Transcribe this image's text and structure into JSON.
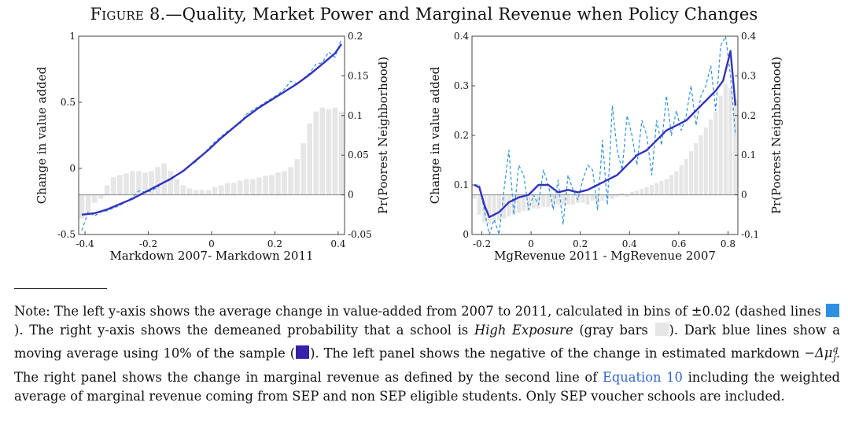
{
  "figure": {
    "label": "Figure 8.",
    "title": "—Quality, Market Power and Marginal Revenue when Policy Changes"
  },
  "colors": {
    "dashed": "#2e8fe0",
    "moving_avg": "#3333bb",
    "bars": "#e6e6e6"
  },
  "chart_data": [
    {
      "type": "line",
      "xlabel": "Markdown 2007- Markdown 2011",
      "ylabel": "Change in value added",
      "y2label": "Pr(Poorest Neighborhood)",
      "xlim": [
        -0.42,
        0.42
      ],
      "ylim": [
        -0.5,
        1
      ],
      "y2lim": [
        -0.05,
        0.2
      ],
      "xticks": [
        "-0.4",
        "-0.2",
        "0",
        "0.2",
        "0.4"
      ],
      "yticks": [
        "-0.5",
        "0",
        "0.5",
        "1"
      ],
      "y2ticks": [
        "-0.05",
        "0",
        "0.05",
        "0.1",
        "0.15",
        "0.2"
      ],
      "bars": {
        "name": "High Exposure (gray bars)",
        "x": [
          -0.41,
          -0.39,
          -0.37,
          -0.35,
          -0.33,
          -0.31,
          -0.29,
          -0.27,
          -0.25,
          -0.23,
          -0.21,
          -0.19,
          -0.17,
          -0.15,
          -0.13,
          -0.11,
          -0.09,
          -0.07,
          -0.05,
          -0.03,
          -0.01,
          0.01,
          0.03,
          0.05,
          0.07,
          0.09,
          0.11,
          0.13,
          0.15,
          0.17,
          0.19,
          0.21,
          0.23,
          0.25,
          0.27,
          0.29,
          0.31,
          0.33,
          0.35,
          0.37,
          0.39,
          0.41
        ],
        "values": [
          -0.03,
          -0.025,
          -0.01,
          -0.005,
          0.012,
          0.022,
          0.025,
          0.027,
          0.03,
          0.03,
          0.028,
          0.03,
          0.035,
          0.04,
          0.03,
          0.02,
          0.012,
          0.008,
          0.006,
          0.006,
          0.006,
          0.01,
          0.012,
          0.015,
          0.015,
          0.018,
          0.02,
          0.02,
          0.022,
          0.024,
          0.025,
          0.028,
          0.03,
          0.035,
          0.045,
          0.065,
          0.09,
          0.105,
          0.11,
          0.108,
          0.11,
          0.105
        ]
      },
      "series": [
        {
          "name": "dashed lines",
          "style": "dashed",
          "x": [
            -0.41,
            -0.39,
            -0.37,
            -0.35,
            -0.33,
            -0.31,
            -0.29,
            -0.27,
            -0.25,
            -0.23,
            -0.21,
            -0.19,
            -0.17,
            -0.15,
            -0.13,
            -0.11,
            -0.09,
            -0.07,
            -0.05,
            -0.03,
            -0.01,
            0.01,
            0.03,
            0.05,
            0.07,
            0.09,
            0.11,
            0.13,
            0.15,
            0.17,
            0.19,
            0.21,
            0.23,
            0.25,
            0.27,
            0.29,
            0.31,
            0.33,
            0.35,
            0.37,
            0.39,
            0.41
          ],
          "values": [
            -0.47,
            -0.33,
            -0.36,
            -0.33,
            -0.32,
            -0.3,
            -0.28,
            -0.25,
            -0.22,
            -0.17,
            -0.18,
            -0.17,
            -0.14,
            -0.1,
            -0.09,
            -0.05,
            -0.02,
            0.02,
            0.05,
            0.1,
            0.15,
            0.2,
            0.24,
            0.28,
            0.31,
            0.34,
            0.41,
            0.44,
            0.47,
            0.5,
            0.53,
            0.56,
            0.6,
            0.66,
            0.64,
            0.68,
            0.72,
            0.79,
            0.8,
            0.88,
            0.84,
            0.98
          ]
        },
        {
          "name": "moving average",
          "style": "solid",
          "x": [
            -0.41,
            -0.37,
            -0.33,
            -0.29,
            -0.25,
            -0.21,
            -0.17,
            -0.13,
            -0.09,
            -0.05,
            -0.01,
            0.03,
            0.07,
            0.11,
            0.15,
            0.19,
            0.23,
            0.27,
            0.31,
            0.35,
            0.39,
            0.41
          ],
          "values": [
            -0.35,
            -0.34,
            -0.31,
            -0.27,
            -0.23,
            -0.18,
            -0.13,
            -0.08,
            -0.02,
            0.06,
            0.14,
            0.23,
            0.31,
            0.39,
            0.46,
            0.52,
            0.58,
            0.64,
            0.71,
            0.79,
            0.87,
            0.94
          ]
        }
      ]
    },
    {
      "type": "line",
      "xlabel": "MgRevenue 2011 - MgRevenue 2007",
      "ylabel": "Change in value added",
      "y2label": "Pr(Poorest Neighborhood)",
      "xlim": [
        -0.24,
        0.84
      ],
      "ylim": [
        0,
        0.4
      ],
      "y2lim": [
        -0.1,
        0.4
      ],
      "xticks": [
        "-0.2",
        "0",
        "0.2",
        "0.4",
        "0.6",
        "0.8"
      ],
      "yticks": [
        "0",
        "0.1",
        "0.2",
        "0.3",
        "0.4"
      ],
      "y2ticks": [
        "-0.1",
        "0",
        "0.1",
        "0.2",
        "0.3",
        "0.4"
      ],
      "bars": {
        "name": "High Exposure (gray bars)",
        "x": [
          -0.23,
          -0.21,
          -0.19,
          -0.17,
          -0.15,
          -0.13,
          -0.11,
          -0.09,
          -0.07,
          -0.05,
          -0.03,
          -0.01,
          0.01,
          0.03,
          0.05,
          0.07,
          0.09,
          0.11,
          0.13,
          0.15,
          0.17,
          0.19,
          0.21,
          0.23,
          0.25,
          0.27,
          0.29,
          0.31,
          0.33,
          0.35,
          0.37,
          0.39,
          0.41,
          0.43,
          0.45,
          0.47,
          0.49,
          0.51,
          0.53,
          0.55,
          0.57,
          0.59,
          0.61,
          0.63,
          0.65,
          0.67,
          0.69,
          0.71,
          0.73,
          0.75,
          0.77,
          0.79,
          0.81,
          0.83
        ],
        "values": [
          -0.01,
          -0.05,
          -0.07,
          -0.075,
          -0.07,
          -0.065,
          -0.06,
          -0.055,
          -0.05,
          -0.045,
          -0.04,
          -0.04,
          -0.035,
          -0.035,
          -0.03,
          -0.03,
          -0.03,
          -0.025,
          -0.025,
          -0.025,
          -0.025,
          -0.02,
          -0.02,
          -0.025,
          -0.015,
          -0.02,
          -0.015,
          -0.01,
          -0.01,
          -0.005,
          0.005,
          -0.005,
          0.008,
          0.01,
          0.015,
          0.02,
          0.025,
          0.03,
          0.035,
          0.04,
          0.05,
          0.06,
          0.075,
          0.09,
          0.11,
          0.13,
          0.15,
          0.17,
          0.19,
          0.21,
          0.25,
          0.28,
          0.27,
          0.24
        ]
      },
      "series": [
        {
          "name": "dashed lines",
          "style": "dashed",
          "x": [
            -0.23,
            -0.21,
            -0.19,
            -0.17,
            -0.15,
            -0.13,
            -0.11,
            -0.09,
            -0.07,
            -0.05,
            -0.03,
            -0.01,
            0.01,
            0.03,
            0.05,
            0.07,
            0.09,
            0.11,
            0.13,
            0.15,
            0.17,
            0.19,
            0.21,
            0.23,
            0.25,
            0.27,
            0.29,
            0.31,
            0.33,
            0.35,
            0.37,
            0.39,
            0.41,
            0.43,
            0.45,
            0.47,
            0.49,
            0.51,
            0.53,
            0.55,
            0.57,
            0.59,
            0.61,
            0.63,
            0.65,
            0.67,
            0.69,
            0.71,
            0.73,
            0.75,
            0.77,
            0.79,
            0.81,
            0.83
          ],
          "values": [
            0.1,
            0.1,
            0.05,
            0.0,
            0.03,
            0.0,
            0.09,
            0.17,
            0.04,
            0.14,
            0.12,
            0.05,
            0.08,
            0.06,
            0.13,
            0.1,
            0.05,
            0.11,
            0.02,
            0.12,
            0.09,
            0.07,
            0.11,
            0.14,
            0.13,
            0.05,
            0.19,
            0.06,
            0.26,
            0.17,
            0.13,
            0.24,
            0.2,
            0.14,
            0.23,
            0.2,
            0.12,
            0.23,
            0.18,
            0.28,
            0.2,
            0.25,
            0.21,
            0.24,
            0.3,
            0.22,
            0.28,
            0.3,
            0.34,
            0.25,
            0.38,
            0.4,
            0.32,
            0.2
          ]
        },
        {
          "name": "moving average",
          "style": "solid",
          "x": [
            -0.23,
            -0.21,
            -0.19,
            -0.17,
            -0.15,
            -0.13,
            -0.11,
            -0.09,
            -0.05,
            -0.01,
            0.03,
            0.07,
            0.11,
            0.15,
            0.19,
            0.23,
            0.27,
            0.31,
            0.35,
            0.39,
            0.43,
            0.47,
            0.51,
            0.55,
            0.59,
            0.63,
            0.67,
            0.71,
            0.75,
            0.78,
            0.8,
            0.81,
            0.83
          ],
          "values": [
            0.1,
            0.095,
            0.06,
            0.035,
            0.04,
            0.045,
            0.055,
            0.065,
            0.075,
            0.08,
            0.1,
            0.1,
            0.085,
            0.09,
            0.085,
            0.09,
            0.1,
            0.11,
            0.12,
            0.14,
            0.16,
            0.17,
            0.19,
            0.21,
            0.22,
            0.23,
            0.25,
            0.27,
            0.29,
            0.31,
            0.35,
            0.37,
            0.26
          ]
        }
      ]
    }
  ],
  "note": {
    "p1": "Note: The left y-axis shows the average change in value-added from 2007 to 2011, calculated in bins of ±0.02 (dashed lines ",
    "p2": "). The right y-axis shows the demeaned probability that a school is ",
    "p3": "High Exposure",
    "p4": " (gray bars ",
    "p5": "). Dark blue lines show a moving average using 10% of the sample (",
    "p6": "). The left panel shows the negative of the change in estimated markdown ",
    "math": "−Δμ",
    "math_sup": "q",
    "math_sub": "j",
    "p7": ". The right panel shows the change in marginal revenue as defined by the second line of ",
    "link": "Equation 10",
    "p8": " including the weighted average of marginal revenue coming from SEP and non SEP eligible students. Only SEP voucher schools are included."
  }
}
